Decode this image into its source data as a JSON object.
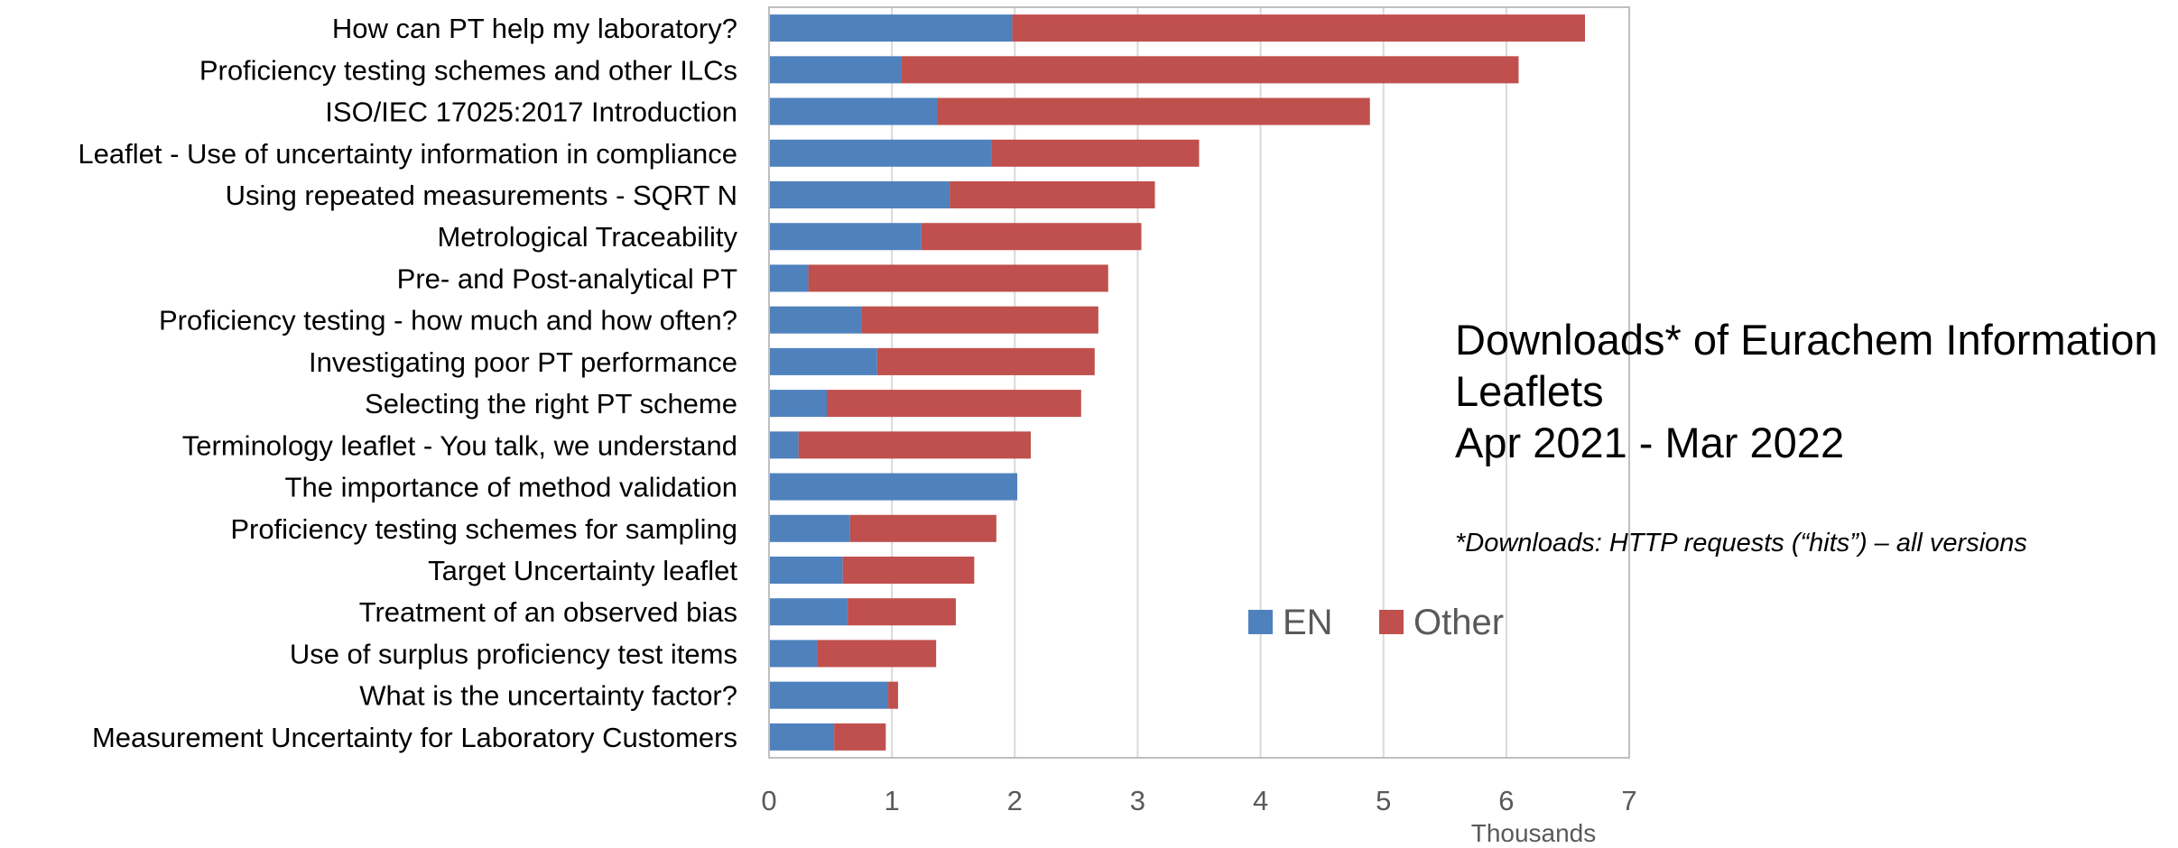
{
  "chart_data": {
    "type": "bar",
    "orientation": "horizontal",
    "stacked": true,
    "title_lines": [
      "Downloads* of Eurachem Information",
      "Leaflets",
      "Apr 2021 - Mar 2022"
    ],
    "note": "*Downloads: HTTP requests (“hits”) – all versions",
    "xlabel": "Thousands",
    "xlim": [
      0,
      7
    ],
    "xticks": [
      "0",
      "1",
      "2",
      "3",
      "4",
      "5",
      "6",
      "7"
    ],
    "grid": true,
    "legend_position": "inside-right",
    "categories": [
      "How can PT help my laboratory?",
      "Proficiency testing schemes and other ILCs",
      "ISO/IEC 17025:2017 Introduction",
      "Leaflet - Use of uncertainty information in compliance",
      "Using repeated measurements - SQRT N",
      "Metrological Traceability",
      "Pre- and Post-analytical PT",
      "Proficiency testing - how much and how often?",
      "Investigating poor PT performance",
      "Selecting the right PT scheme",
      "Terminology leaflet - You talk, we understand",
      "The importance of method validation",
      "Proficiency testing schemes for sampling",
      "Target Uncertainty leaflet",
      "Treatment of an observed bias",
      "Use of surplus proficiency test items",
      "What is the uncertainty factor?",
      "Measurement Uncertainty for Laboratory Customers"
    ],
    "series": [
      {
        "name": "EN",
        "color": "#4F81BD",
        "values": [
          1.98,
          1.08,
          1.37,
          1.81,
          1.47,
          1.24,
          0.32,
          0.75,
          0.88,
          0.47,
          0.24,
          2.02,
          0.66,
          0.6,
          0.64,
          0.39,
          0.97,
          0.53
        ]
      },
      {
        "name": "Other",
        "color": "#C0504D",
        "values": [
          4.66,
          5.02,
          3.52,
          1.69,
          1.67,
          1.79,
          2.44,
          1.93,
          1.77,
          2.07,
          1.89,
          0.0,
          1.19,
          1.07,
          0.88,
          0.97,
          0.08,
          0.42
        ]
      }
    ]
  }
}
